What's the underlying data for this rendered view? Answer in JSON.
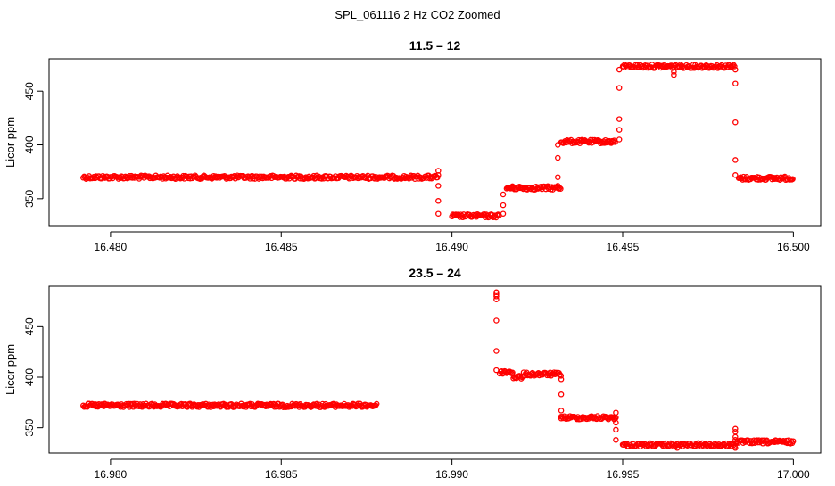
{
  "figure": {
    "suptitle": "SPL_061116  2 Hz CO2 Zoomed"
  },
  "colors": {
    "points": "#ff0000",
    "axes": "#000000",
    "background": "#ffffff"
  },
  "chart_data": [
    {
      "type": "scatter",
      "title": "11.5 – 12",
      "xlabel": "",
      "ylabel": "Licor ppm",
      "xlim": [
        16.4782,
        16.5008
      ],
      "ylim": [
        325,
        480
      ],
      "xticks": [
        16.48,
        16.485,
        16.49,
        16.495,
        16.5
      ],
      "xtick_labels": [
        "16.480",
        "16.485",
        "16.490",
        "16.495",
        "16.500"
      ],
      "yticks": [
        350,
        400,
        450
      ],
      "ytick_labels": [
        "350",
        "400",
        "450"
      ],
      "marker": "open-circle",
      "grid": false,
      "series": [
        {
          "segments": [
            {
              "x0": 16.4792,
              "x1": 16.4896,
              "y": 370
            },
            {
              "x0": 16.49,
              "x1": 16.4914,
              "y": 334
            },
            {
              "x0": 16.4916,
              "x1": 16.4932,
              "y": 360
            },
            {
              "x0": 16.4932,
              "x1": 16.4948,
              "y": 403
            },
            {
              "x0": 16.495,
              "x1": 16.4983,
              "y": 473
            },
            {
              "x0": 16.4984,
              "x1": 16.5,
              "y": 369
            }
          ],
          "transitions": [
            {
              "x": 16.4896,
              "y": [
                376,
                372,
                362,
                348,
                336
              ]
            },
            {
              "x": 16.4915,
              "y": [
                336,
                344,
                354
              ]
            },
            {
              "x": 16.4931,
              "y": [
                362,
                370,
                388,
                400
              ]
            },
            {
              "x": 16.4949,
              "y": [
                405,
                414,
                424,
                453,
                470
              ]
            },
            {
              "x": 16.4965,
              "y": [
                465,
                468
              ]
            },
            {
              "x": 16.4983,
              "y": [
                470,
                457,
                421,
                386,
                372
              ]
            }
          ]
        }
      ]
    },
    {
      "type": "scatter",
      "title": "23.5 – 24",
      "xlabel": "",
      "ylabel": "Licor ppm",
      "xlim": [
        16.9782,
        17.0008
      ],
      "ylim": [
        325,
        490
      ],
      "xticks": [
        16.98,
        16.985,
        16.99,
        16.995,
        17.0
      ],
      "xtick_labels": [
        "16.980",
        "16.985",
        "16.990",
        "16.995",
        "17.000"
      ],
      "yticks": [
        350,
        400,
        450
      ],
      "ytick_labels": [
        "350",
        "400",
        "450"
      ],
      "marker": "open-circle",
      "grid": false,
      "series": [
        {
          "segments": [
            {
              "x0": 16.9792,
              "x1": 16.9878,
              "y": 372
            },
            {
              "x0": 16.9914,
              "x1": 16.9918,
              "y": 405
            },
            {
              "x0": 16.9918,
              "x1": 16.9921,
              "y": 400
            },
            {
              "x0": 16.9921,
              "x1": 16.9932,
              "y": 403
            },
            {
              "x0": 16.9932,
              "x1": 16.9948,
              "y": 360
            },
            {
              "x0": 16.995,
              "x1": 16.9983,
              "y": 333
            },
            {
              "x0": 16.9983,
              "x1": 17.0,
              "y": 336
            }
          ],
          "transitions": [
            {
              "x": 16.9913,
              "y": [
                484,
                482,
                480,
                477,
                456,
                426,
                407
              ]
            },
            {
              "x": 16.9932,
              "y": [
                398,
                383,
                367,
                361
              ]
            },
            {
              "x": 16.9948,
              "y": [
                365,
                360,
                355,
                348,
                338
              ]
            },
            {
              "x": 16.9966,
              "y": [
                330
              ]
            },
            {
              "x": 16.9983,
              "y": [
                349,
                346,
                341,
                338,
                330
              ]
            }
          ]
        }
      ]
    }
  ]
}
